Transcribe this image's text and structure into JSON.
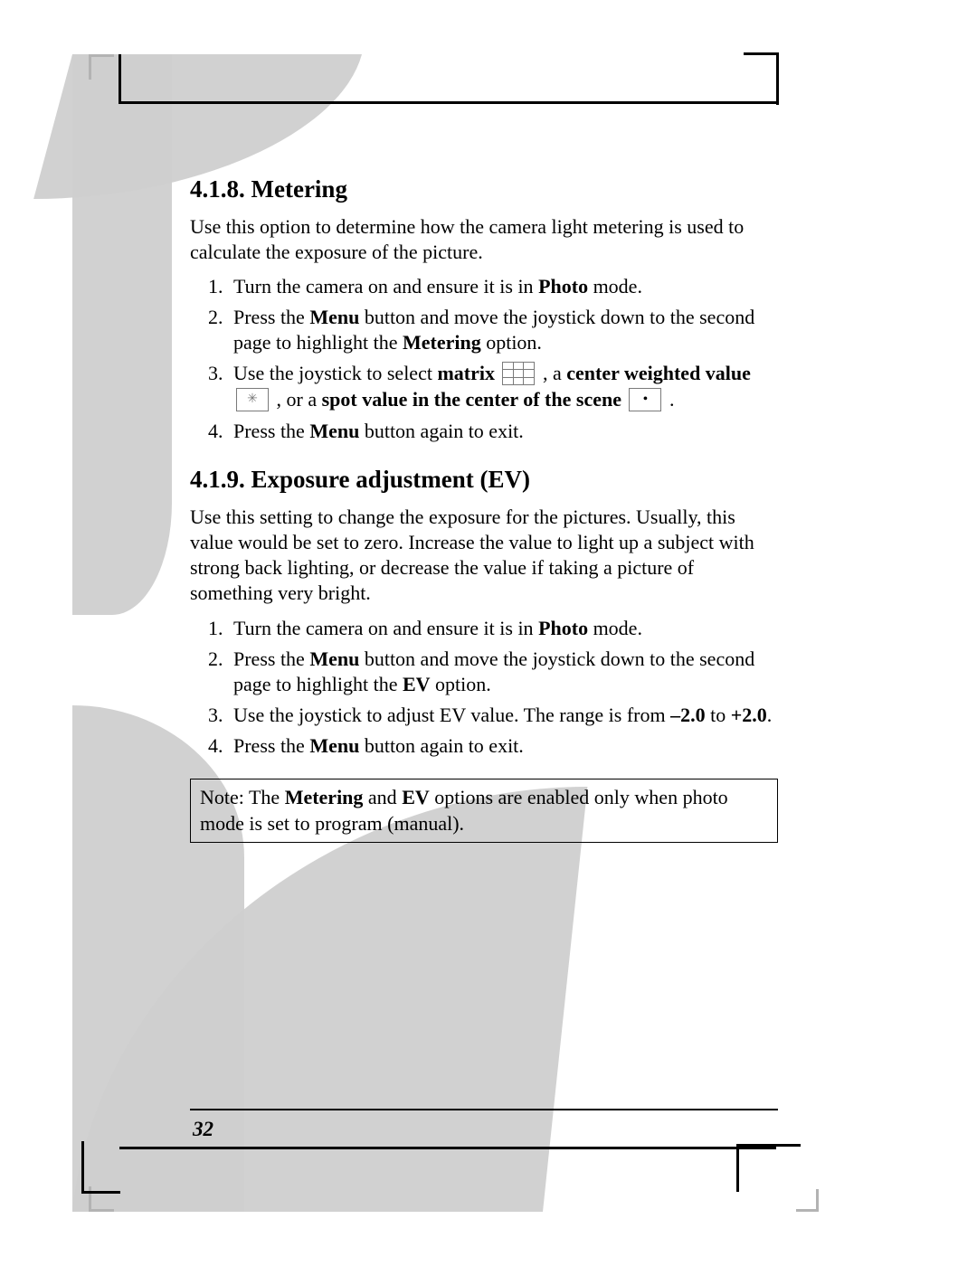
{
  "page_number": "32",
  "section_a": {
    "heading": "4.1.8. Metering",
    "intro": "Use this option to determine how the camera light metering is used to calculate the exposure of the picture.",
    "steps": {
      "s1_a": "Turn the camera on and ensure it is in ",
      "s1_b": "Photo",
      "s1_c": " mode.",
      "s2_a": "Press the ",
      "s2_b": "Menu",
      "s2_c": " button and move the joystick down to the second page to highlight the ",
      "s2_d": "Metering",
      "s2_e": " option.",
      "s3_a": "Use the joystick to select ",
      "s3_b": "matrix",
      "s3_c": " , a ",
      "s3_d": "center weighted value",
      "s3_e": " , or a ",
      "s3_f": "spot value in the center of the scene",
      "s3_g": "  .",
      "s4_a": "Press the ",
      "s4_b": "Menu",
      "s4_c": " button again to exit."
    }
  },
  "section_b": {
    "heading": "4.1.9. Exposure adjustment (EV)",
    "intro": "Use this setting to change the exposure for the pictures. Usually, this value would be set to zero. Increase the value to light up a subject with strong back lighting, or decrease the value if taking a picture of something very bright.",
    "steps": {
      "s1_a": "Turn the camera on and ensure it is in ",
      "s1_b": "Photo",
      "s1_c": " mode.",
      "s2_a": "Press the ",
      "s2_b": "Menu",
      "s2_c": " button and move the joystick down to the second page to highlight the ",
      "s2_d": "EV",
      "s2_e": " option.",
      "s3_a": "Use the joystick to adjust EV value. The range is from ",
      "s3_b": "–2.0",
      "s3_c": " to ",
      "s3_d": "+2.0",
      "s3_e": ".",
      "s4_a": "Press the ",
      "s4_b": "Menu",
      "s4_c": " button again to exit."
    }
  },
  "note": {
    "a": "Note: The ",
    "b": "Metering",
    "c": " and ",
    "d": "EV",
    "e": " options are enabled only when photo mode is set to program (manual)."
  },
  "colors": {
    "grey": "#cfcfcf",
    "text": "#000000",
    "icon_border": "#7a7a7a"
  }
}
